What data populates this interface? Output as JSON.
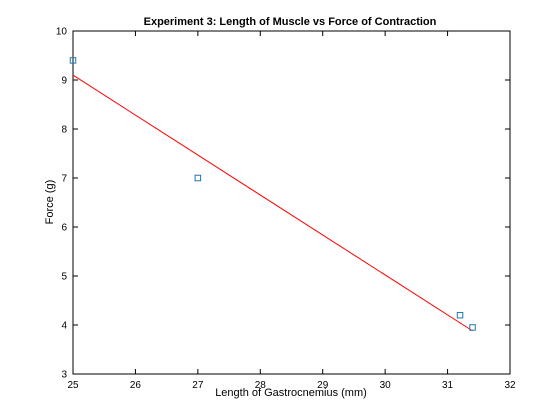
{
  "chart_data": {
    "type": "scatter",
    "title": "Experiment 3: Length of Muscle vs Force of Contraction",
    "xlabel": "Length of Gastrocnemius (mm)",
    "ylabel": "Force (g)",
    "xlim": [
      25,
      32
    ],
    "ylim": [
      3,
      10
    ],
    "xticks": [
      25,
      26,
      27,
      28,
      29,
      30,
      31,
      32
    ],
    "yticks": [
      3,
      4,
      5,
      6,
      7,
      8,
      9,
      10
    ],
    "grid": false,
    "series": [
      {
        "kind": "markers",
        "marker": "square",
        "color": "#1f77b4",
        "points": [
          {
            "x": 25.0,
            "y": 9.4
          },
          {
            "x": 27.0,
            "y": 7.0
          },
          {
            "x": 31.2,
            "y": 4.2
          },
          {
            "x": 31.4,
            "y": 3.95
          }
        ]
      },
      {
        "kind": "line",
        "color": "#ff0000",
        "points": [
          {
            "x": 25.0,
            "y": 9.1
          },
          {
            "x": 31.4,
            "y": 3.88
          }
        ]
      }
    ]
  }
}
